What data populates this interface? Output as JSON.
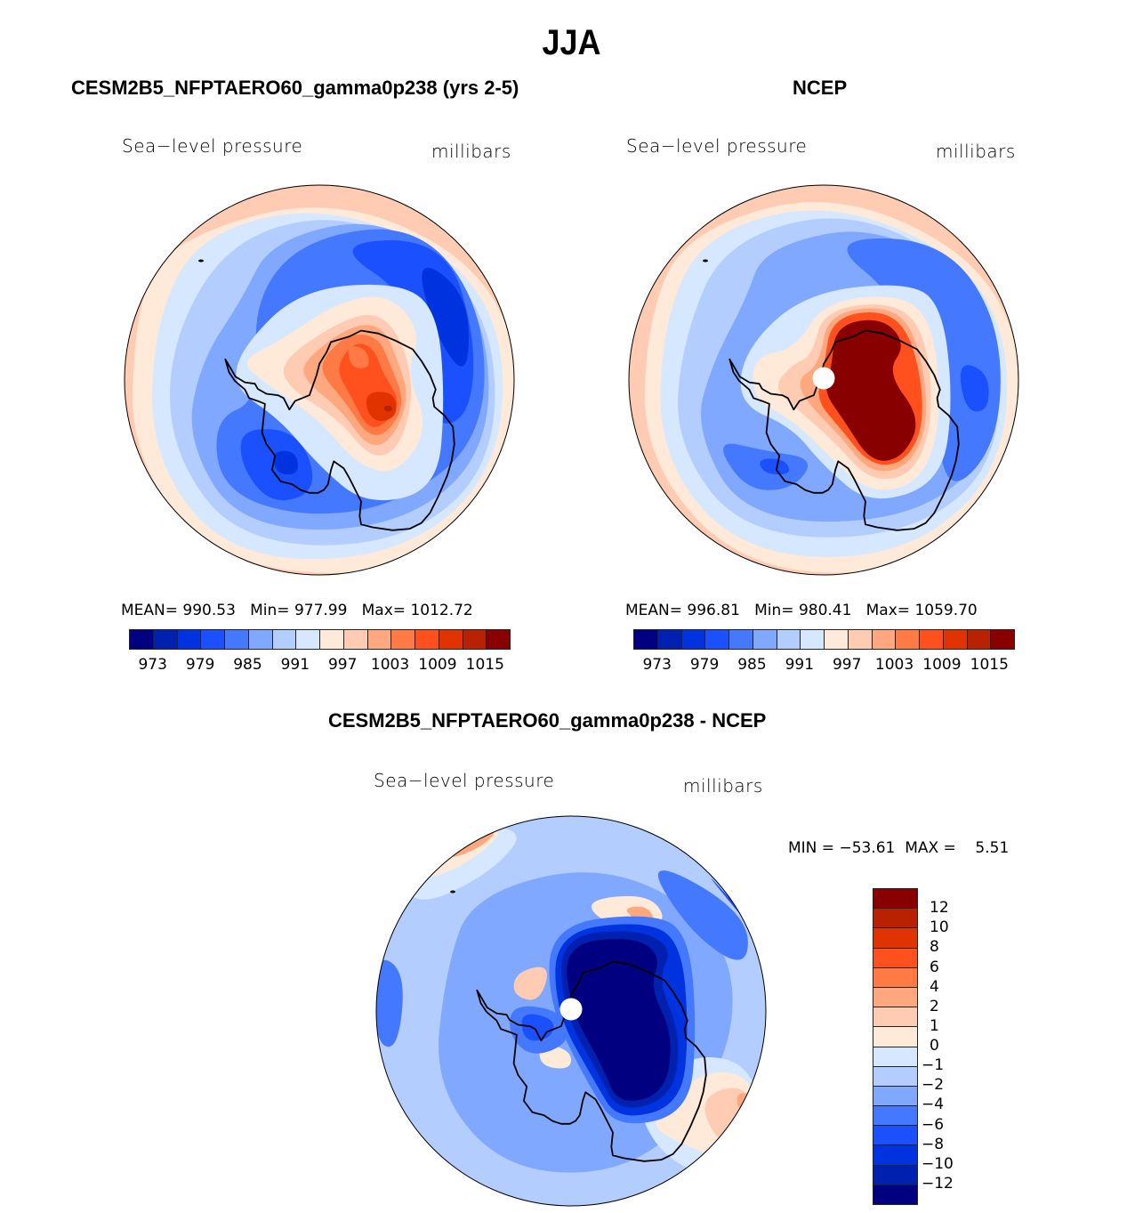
{
  "figure": {
    "title": "JJA"
  },
  "colors": {
    "levels16": [
      "#000080",
      "#0020b0",
      "#0033e0",
      "#1a50ff",
      "#4478ff",
      "#80a8ff",
      "#b4cdff",
      "#d6e8ff",
      "#ffe9d9",
      "#ffcbb2",
      "#ffa880",
      "#ff7a45",
      "#ff501e",
      "#e03300",
      "#b82200",
      "#880000"
    ],
    "coastline": "#000000"
  },
  "chart_data": [
    {
      "type": "heatmap",
      "projection": "south-polar-stereographic",
      "title": "CESM2B5_NFPTAERO60_gamma0p238 (yrs 2-5)",
      "variable": "Sea−level pressure",
      "units": "millibars",
      "stats": {
        "mean_label": "MEAN=",
        "mean": "990.53",
        "min_label": "Min=",
        "min": "977.99",
        "max_label": "Max=",
        "max": "1012.72"
      },
      "colorbar": {
        "orientation": "horizontal",
        "tick_labels": [
          "973",
          "979",
          "985",
          "991",
          "997",
          "1003",
          "1009",
          "1015"
        ],
        "levels": [
          970,
          973,
          976,
          979,
          982,
          985,
          988,
          991,
          994,
          997,
          1000,
          1003,
          1006,
          1009,
          1012,
          1015,
          1018
        ]
      },
      "features": {
        "ocean_ring_outer": "997-1003 (pink, NW edge)",
        "low_pressure_belt": "979-985 around the continent",
        "continent_high_peak": "1009-1015 over East Antarctica"
      }
    },
    {
      "type": "heatmap",
      "projection": "south-polar-stereographic",
      "title": "NCEP",
      "variable": "Sea−level pressure",
      "units": "millibars",
      "stats": {
        "mean_label": "MEAN=",
        "mean": "996.81",
        "min_label": "Min=",
        "min": "980.41",
        "max_label": "Max=",
        "max": "1059.70"
      },
      "colorbar": {
        "orientation": "horizontal",
        "tick_labels": [
          "973",
          "979",
          "985",
          "991",
          "997",
          "1003",
          "1009",
          "1015"
        ],
        "levels": [
          970,
          973,
          976,
          979,
          982,
          985,
          988,
          991,
          994,
          997,
          1000,
          1003,
          1006,
          1009,
          1012,
          1015,
          1018
        ]
      },
      "features": {
        "continent_high": ">1015 over East Antarctica",
        "pole_masked": true
      }
    },
    {
      "type": "heatmap",
      "projection": "south-polar-stereographic",
      "title": "CESM2B5_NFPTAERO60_gamma0p238 - NCEP",
      "variable": "Sea−level pressure",
      "units": "millibars",
      "stats": {
        "min_label": "MIN =",
        "min": "−53.61",
        "max_label": "MAX =",
        "max": "5.51"
      },
      "colorbar": {
        "orientation": "vertical",
        "tick_labels": [
          "12",
          "10",
          "8",
          "6",
          "4",
          "2",
          "1",
          "0",
          "−1",
          "−2",
          "−4",
          "−6",
          "−8",
          "−10",
          "−12"
        ],
        "levels": [
          -12,
          -10,
          -8,
          -6,
          -4,
          -2,
          -1,
          0,
          1,
          2,
          4,
          6,
          8,
          10,
          12
        ]
      },
      "features": {
        "continent_difference": "< −12 over East Antarctica",
        "pole_masked": true
      }
    }
  ]
}
